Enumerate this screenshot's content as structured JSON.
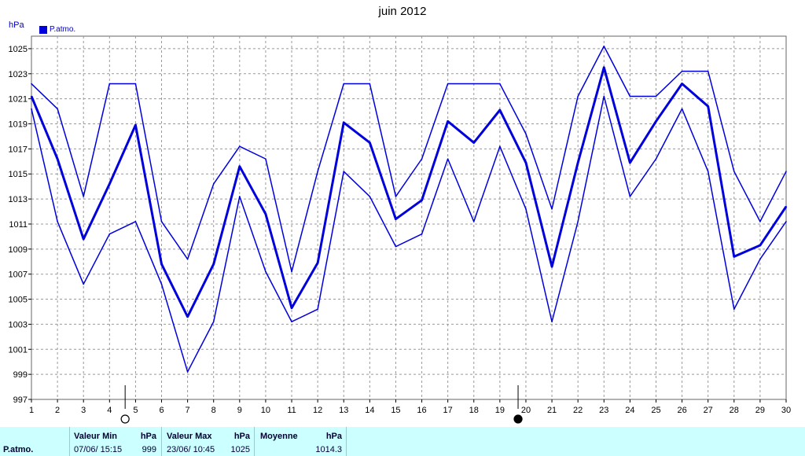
{
  "chart_data": {
    "type": "line",
    "title": "juin 2012",
    "ylabel": "hPa",
    "legend": "P.atmo.",
    "legend_placement": "top-left",
    "grid": true,
    "ylim": [
      997,
      1026
    ],
    "yticks": [
      997,
      999,
      1001,
      1003,
      1005,
      1007,
      1009,
      1011,
      1013,
      1015,
      1017,
      1019,
      1021,
      1023,
      1025
    ],
    "x": [
      1,
      2,
      3,
      4,
      5,
      6,
      7,
      8,
      9,
      10,
      11,
      12,
      13,
      14,
      15,
      16,
      17,
      18,
      19,
      20,
      21,
      22,
      23,
      24,
      25,
      26,
      27,
      28,
      29,
      30
    ],
    "series": [
      {
        "role": "max",
        "values": [
          1022.2,
          1020.2,
          1013.2,
          1022.2,
          1022.2,
          1011.2,
          1008.2,
          1014.2,
          1017.2,
          1016.2,
          1007.2,
          1015.2,
          1022.2,
          1022.2,
          1013.2,
          1016.2,
          1022.2,
          1022.2,
          1022.2,
          1018.2,
          1012.2,
          1021.2,
          1025.2,
          1021.2,
          1021.2,
          1023.2,
          1023.2,
          1015.2,
          1011.2,
          1015.2
        ]
      },
      {
        "role": "mean",
        "values": [
          1021.2,
          1016.2,
          1009.8,
          1014.2,
          1018.9,
          1007.8,
          1003.6,
          1007.8,
          1015.6,
          1011.8,
          1004.3,
          1007.9,
          1019.1,
          1017.5,
          1011.4,
          1012.9,
          1019.2,
          1017.5,
          1020.1,
          1015.9,
          1007.6,
          1015.9,
          1023.5,
          1015.9,
          1019.2,
          1022.2,
          1020.4,
          1008.4,
          1009.3,
          1012.4
        ]
      },
      {
        "role": "min",
        "values": [
          1020.2,
          1011.2,
          1006.2,
          1010.2,
          1011.2,
          1006.2,
          999.2,
          1003.2,
          1013.2,
          1007.2,
          1003.2,
          1004.2,
          1015.2,
          1013.2,
          1009.2,
          1010.2,
          1016.2,
          1011.2,
          1017.2,
          1012.2,
          1003.2,
          1011.2,
          1021.2,
          1013.2,
          1016.2,
          1020.2,
          1015.2,
          1004.2,
          1008.2,
          1011.2
        ]
      }
    ],
    "moon_markers": [
      {
        "day": 4.6,
        "phase": "full-moon"
      },
      {
        "day": 19.7,
        "phase": "new-moon"
      }
    ]
  },
  "colors": {
    "line": "#0000dd",
    "grid": "#999999",
    "footer": "#ccffff"
  },
  "stats": {
    "row_label": "P.atmo.",
    "min_label": "Valeur Min",
    "min_unit": "hPa",
    "min_date": "07/06/  15:15",
    "min_value": "999",
    "max_label": "Valeur Max",
    "max_unit": "hPa",
    "max_date": "23/06/  10:45",
    "max_value": "1025",
    "mean_label": "Moyenne",
    "mean_unit": "hPa",
    "mean_value": "1014.3"
  }
}
